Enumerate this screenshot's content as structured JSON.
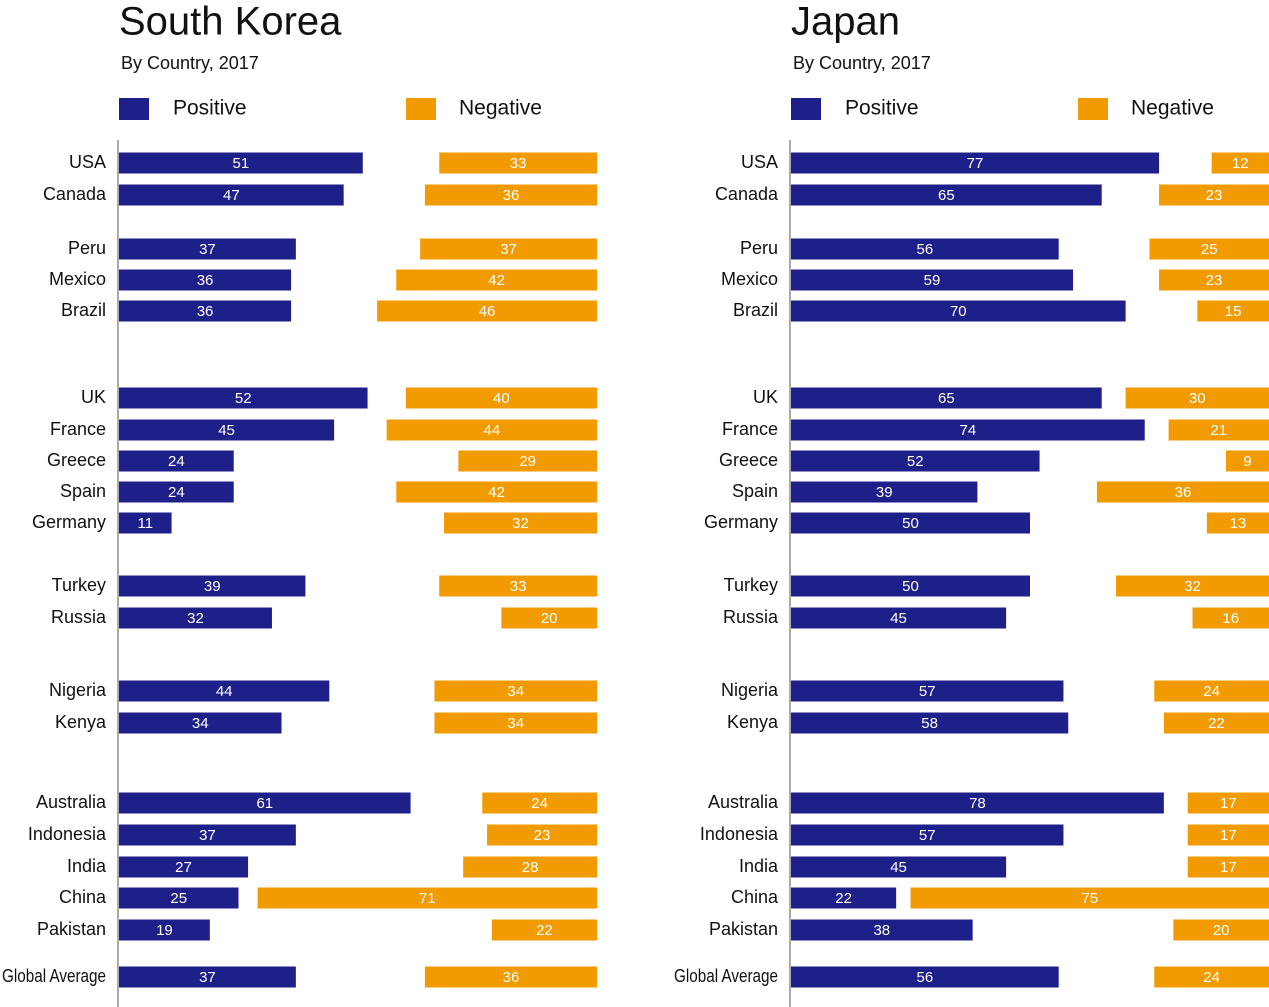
{
  "chart_data": [
    {
      "type": "bar",
      "title": "South Korea",
      "title_color": "#23238e",
      "subtitle": "By Country, 2017",
      "categories": [
        "USA",
        "Canada",
        "Peru",
        "Mexico",
        "Brazil",
        "UK",
        "France",
        "Greece",
        "Spain",
        "Germany",
        "Turkey",
        "Russia",
        "Nigeria",
        "Kenya",
        "Australia",
        "Indonesia",
        "India",
        "China",
        "Pakistan",
        "Global Average"
      ],
      "series": [
        {
          "name": "Positive",
          "color": "#1f1f8a",
          "values": [
            51,
            47,
            37,
            36,
            36,
            52,
            45,
            24,
            24,
            11,
            39,
            32,
            44,
            34,
            61,
            37,
            27,
            25,
            19,
            37
          ]
        },
        {
          "name": "Negative",
          "color": "#f29b00",
          "values": [
            33,
            36,
            37,
            42,
            46,
            40,
            44,
            29,
            42,
            32,
            33,
            20,
            34,
            34,
            24,
            23,
            28,
            71,
            22,
            36
          ]
        }
      ]
    },
    {
      "type": "bar",
      "title": "Japan",
      "title_color": "#e0101a",
      "subtitle": "By Country, 2017",
      "categories": [
        "USA",
        "Canada",
        "Peru",
        "Mexico",
        "Brazil",
        "UK",
        "France",
        "Greece",
        "Spain",
        "Germany",
        "Turkey",
        "Russia",
        "Nigeria",
        "Kenya",
        "Australia",
        "Indonesia",
        "India",
        "China",
        "Pakistan",
        "Global Average"
      ],
      "series": [
        {
          "name": "Positive",
          "color": "#1f1f8a",
          "values": [
            77,
            65,
            56,
            59,
            70,
            65,
            74,
            52,
            39,
            50,
            50,
            45,
            57,
            58,
            78,
            57,
            45,
            22,
            38,
            56
          ]
        },
        {
          "name": "Negative",
          "color": "#f29b00",
          "values": [
            12,
            23,
            25,
            23,
            15,
            30,
            21,
            9,
            36,
            13,
            32,
            16,
            24,
            22,
            17,
            17,
            17,
            75,
            20,
            24
          ]
        }
      ]
    }
  ]
}
